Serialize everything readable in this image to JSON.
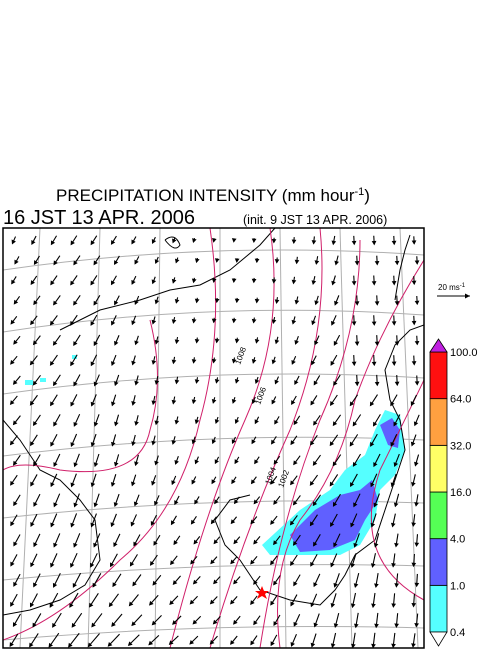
{
  "title": {
    "text": "PRECIPITATION INTENSITY (mm hour",
    "superscript": "-1",
    "close": ")"
  },
  "valid_time": "16 JST 13 APR. 2006",
  "init_time": "(init. 9 JST 13 APR. 2006)",
  "wind_scale": {
    "text": "20 ms",
    "superscript": "-1"
  },
  "colorbar": {
    "ticks": [
      "0.4",
      "1.0",
      "4.0",
      "16.0",
      "32.0",
      "64.0",
      "100.0"
    ],
    "below_color": "#ffffff",
    "colors": [
      "#55ffff",
      "#6060ff",
      "#55ff55",
      "#ffff66",
      "#ffa040",
      "#ff1010"
    ],
    "above_color": "#c020e0"
  },
  "isobar_labels": [
    "1008",
    "1006",
    "1004",
    "1002"
  ]
}
